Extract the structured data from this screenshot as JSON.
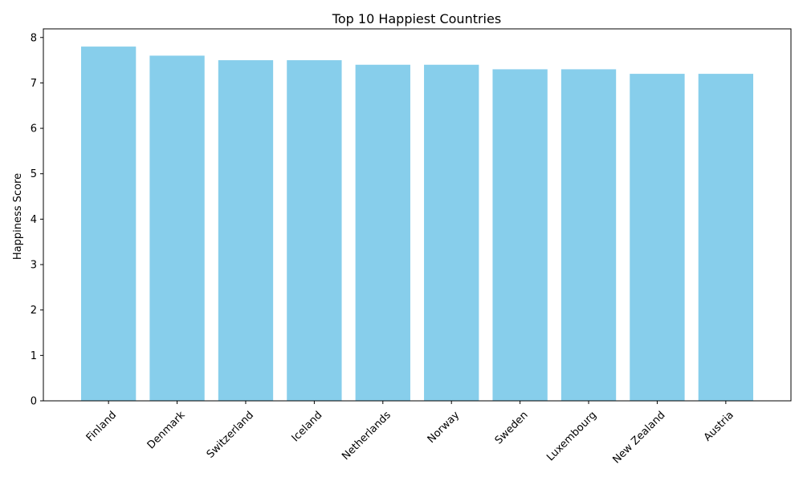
{
  "chart_data": {
    "type": "bar",
    "title": "Top 10 Happiest Countries",
    "xlabel": "",
    "ylabel": "Happiness Score",
    "categories": [
      "Finland",
      "Denmark",
      "Switzerland",
      "Iceland",
      "Netherlands",
      "Norway",
      "Sweden",
      "Luxembourg",
      "New Zealand",
      "Austria"
    ],
    "values": [
      7.8,
      7.6,
      7.5,
      7.5,
      7.4,
      7.4,
      7.3,
      7.3,
      7.2,
      7.2
    ],
    "ylim": [
      0,
      8.19
    ],
    "yticks": [
      0,
      1,
      2,
      3,
      4,
      5,
      6,
      7,
      8
    ],
    "grid": false,
    "legend": "none",
    "bar_color": "#87CEEB",
    "xtick_rotation_deg": 45
  }
}
